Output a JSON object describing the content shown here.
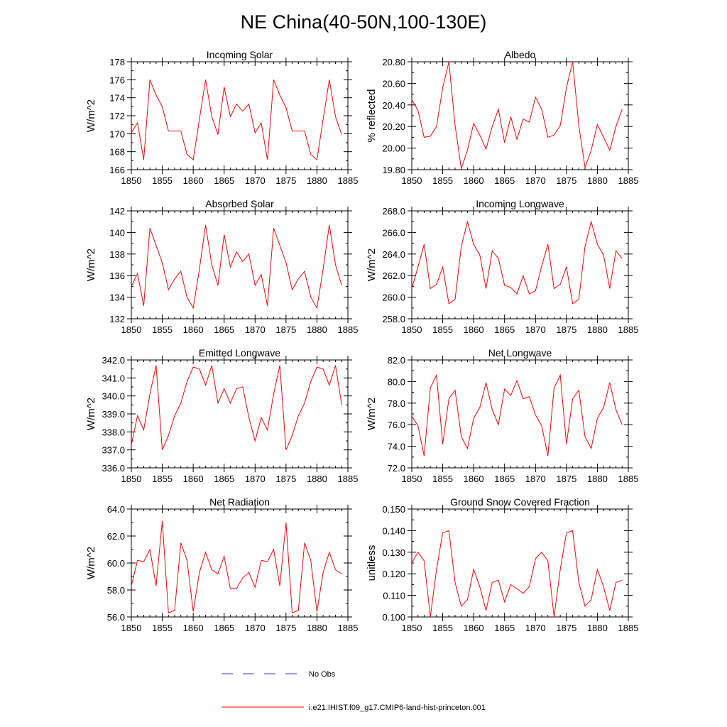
{
  "figure": {
    "title": "NE China(40-50N,100-130E)"
  },
  "legend": {
    "entries": [
      {
        "label": "No Obs",
        "color": "#3333cc",
        "dashed": true
      },
      {
        "label": "i.e21.IHIST.f09_g17.CMIP6-land-hist-princeton.001",
        "color": "#ff0000",
        "dashed": false
      }
    ]
  },
  "colors": {
    "line": "#ff0000",
    "axis": "#000000"
  },
  "chart_data": [
    {
      "type": "line",
      "title": "Incoming Solar",
      "ylabel": "W/m^2",
      "xlim": [
        1850,
        1885
      ],
      "ylim": [
        166,
        178
      ],
      "xticks": [
        1850,
        1855,
        1860,
        1865,
        1870,
        1875,
        1880,
        1885
      ],
      "yticks": [
        166,
        168,
        170,
        172,
        174,
        176,
        178
      ],
      "ytick_labels": [
        "166",
        "168",
        "170",
        "172",
        "174",
        "176",
        "178"
      ],
      "grid": false,
      "series": [
        {
          "x_start": 1850,
          "values": [
            170.1,
            171.2,
            167.1,
            176.0,
            174.3,
            173.0,
            170.3,
            170.3,
            170.3,
            167.7,
            167.1,
            171.6,
            176.0,
            171.9,
            169.9,
            175.2,
            171.9,
            173.3,
            172.5,
            173.3,
            170.1,
            171.2,
            167.1,
            176.0,
            174.3,
            172.9,
            170.3,
            170.3,
            170.3,
            167.7,
            167.1,
            171.6,
            176.0,
            171.9,
            169.9
          ]
        }
      ]
    },
    {
      "type": "line",
      "title": "Albedo",
      "ylabel": "% reflected",
      "xlim": [
        1850,
        1885
      ],
      "ylim": [
        19.8,
        20.8
      ],
      "xticks": [
        1850,
        1855,
        1860,
        1865,
        1870,
        1875,
        1880,
        1885
      ],
      "yticks": [
        19.8,
        20.0,
        20.2,
        20.4,
        20.6,
        20.8
      ],
      "ytick_labels": [
        "19.80",
        "20.00",
        "20.20",
        "20.40",
        "20.60",
        "20.80"
      ],
      "grid": false,
      "series": [
        {
          "x_start": 1850,
          "values": [
            20.45,
            20.35,
            20.1,
            20.11,
            20.2,
            20.56,
            20.8,
            20.21,
            19.81,
            19.98,
            20.23,
            20.12,
            19.99,
            20.2,
            20.36,
            20.05,
            20.29,
            20.08,
            20.27,
            20.24,
            20.47,
            20.36,
            20.1,
            20.12,
            20.21,
            20.56,
            20.8,
            20.21,
            19.82,
            19.98,
            20.22,
            20.1,
            19.98,
            20.2,
            20.36
          ]
        }
      ]
    },
    {
      "type": "line",
      "title": "Absorbed Solar",
      "ylabel": "W/m^2",
      "xlim": [
        1850,
        1885
      ],
      "ylim": [
        132,
        142
      ],
      "xticks": [
        1850,
        1855,
        1860,
        1865,
        1870,
        1875,
        1880,
        1885
      ],
      "yticks": [
        132,
        134,
        136,
        138,
        140,
        142
      ],
      "ytick_labels": [
        "132",
        "134",
        "136",
        "138",
        "140",
        "142"
      ],
      "grid": false,
      "series": [
        {
          "x_start": 1850,
          "values": [
            135.0,
            136.2,
            133.2,
            140.4,
            138.8,
            137.2,
            134.7,
            135.7,
            136.4,
            134.0,
            133.0,
            136.6,
            140.7,
            137.0,
            135.1,
            139.8,
            136.8,
            138.2,
            137.3,
            138.0,
            135.1,
            136.1,
            133.2,
            140.4,
            138.8,
            137.2,
            134.7,
            135.7,
            136.4,
            134.0,
            133.0,
            136.6,
            140.7,
            137.0,
            135.1
          ]
        }
      ]
    },
    {
      "type": "line",
      "title": "Incoming Longwave",
      "ylabel": "W/m^2",
      "xlim": [
        1850,
        1885
      ],
      "ylim": [
        258,
        268
      ],
      "xticks": [
        1850,
        1855,
        1860,
        1865,
        1870,
        1875,
        1880,
        1885
      ],
      "yticks": [
        258,
        260,
        262,
        264,
        266,
        268
      ],
      "ytick_labels": [
        "258.0",
        "260.0",
        "262.0",
        "264.0",
        "266.0",
        "268.0"
      ],
      "grid": false,
      "series": [
        {
          "x_start": 1850,
          "values": [
            260.8,
            262.8,
            264.9,
            260.8,
            261.2,
            262.8,
            259.4,
            259.8,
            264.7,
            267.0,
            264.9,
            263.9,
            260.8,
            264.3,
            263.6,
            261.1,
            260.9,
            260.3,
            262.0,
            260.3,
            260.6,
            262.9,
            264.9,
            260.8,
            261.2,
            262.8,
            259.4,
            259.8,
            264.7,
            267.0,
            264.9,
            263.9,
            260.8,
            264.3,
            263.6
          ]
        }
      ]
    },
    {
      "type": "line",
      "title": "Emitted Longwave",
      "ylabel": "W/m^2",
      "xlim": [
        1850,
        1885
      ],
      "ylim": [
        336,
        342
      ],
      "xticks": [
        1850,
        1855,
        1860,
        1865,
        1870,
        1875,
        1880,
        1885
      ],
      "yticks": [
        336,
        337,
        338,
        339,
        340,
        341,
        342
      ],
      "ytick_labels": [
        "336.0",
        "337.0",
        "338.0",
        "339.0",
        "340.0",
        "341.0",
        "342.0"
      ],
      "grid": false,
      "series": [
        {
          "x_start": 1850,
          "values": [
            337.3,
            338.9,
            338.1,
            340.1,
            341.7,
            337.0,
            337.8,
            338.9,
            339.6,
            340.8,
            341.6,
            341.5,
            340.6,
            341.7,
            339.6,
            340.4,
            339.6,
            340.4,
            340.5,
            338.8,
            337.5,
            338.8,
            338.1,
            340.1,
            341.7,
            337.0,
            337.8,
            338.9,
            339.6,
            340.8,
            341.6,
            341.5,
            340.6,
            341.7,
            339.5
          ]
        }
      ]
    },
    {
      "type": "line",
      "title": "Net Longwave",
      "ylabel": "W/m^2",
      "xlim": [
        1850,
        1885
      ],
      "ylim": [
        72,
        82
      ],
      "xticks": [
        1850,
        1855,
        1860,
        1865,
        1870,
        1875,
        1880,
        1885
      ],
      "yticks": [
        72,
        74,
        76,
        78,
        80,
        82
      ],
      "ytick_labels": [
        "72.0",
        "74.0",
        "76.0",
        "78.0",
        "80.0",
        "82.0"
      ],
      "grid": false,
      "series": [
        {
          "x_start": 1850,
          "values": [
            76.8,
            75.9,
            73.1,
            79.4,
            80.6,
            74.2,
            78.4,
            79.2,
            74.9,
            73.8,
            76.6,
            77.6,
            79.9,
            77.4,
            76.0,
            79.3,
            78.7,
            80.1,
            78.4,
            78.6,
            76.9,
            75.9,
            73.1,
            79.4,
            80.6,
            74.2,
            78.4,
            79.2,
            74.9,
            73.8,
            76.6,
            77.6,
            79.9,
            77.4,
            76.0
          ]
        }
      ]
    },
    {
      "type": "line",
      "title": "Net Radiation",
      "ylabel": "W/m^2",
      "xlim": [
        1850,
        1885
      ],
      "ylim": [
        56,
        64
      ],
      "xticks": [
        1850,
        1855,
        1860,
        1865,
        1870,
        1875,
        1880,
        1885
      ],
      "yticks": [
        56,
        58,
        60,
        62,
        64
      ],
      "ytick_labels": [
        "56.0",
        "58.0",
        "60.0",
        "62.0",
        "64.0"
      ],
      "grid": false,
      "series": [
        {
          "x_start": 1850,
          "values": [
            58.3,
            60.2,
            60.1,
            61.0,
            58.3,
            63.1,
            56.3,
            56.5,
            61.5,
            60.2,
            56.4,
            59.3,
            60.8,
            59.5,
            59.2,
            60.5,
            58.1,
            58.1,
            58.9,
            59.3,
            58.2,
            60.2,
            60.1,
            61.0,
            58.3,
            63.0,
            56.3,
            56.5,
            61.5,
            60.2,
            56.4,
            59.3,
            60.8,
            59.5,
            59.2
          ]
        }
      ]
    },
    {
      "type": "line",
      "title": "Ground Snow Covered Fraction",
      "ylabel": "unitless",
      "xlim": [
        1850,
        1885
      ],
      "ylim": [
        0.1,
        0.15
      ],
      "xticks": [
        1850,
        1855,
        1860,
        1865,
        1870,
        1875,
        1880,
        1885
      ],
      "yticks": [
        0.1,
        0.11,
        0.12,
        0.13,
        0.14,
        0.15
      ],
      "ytick_labels": [
        "0.100",
        "0.110",
        "0.120",
        "0.130",
        "0.140",
        "0.150"
      ],
      "grid": false,
      "series": [
        {
          "x_start": 1850,
          "values": [
            0.125,
            0.13,
            0.126,
            0.1,
            0.122,
            0.139,
            0.14,
            0.116,
            0.105,
            0.108,
            0.122,
            0.114,
            0.103,
            0.116,
            0.117,
            0.107,
            0.115,
            0.113,
            0.111,
            0.114,
            0.127,
            0.13,
            0.126,
            0.1,
            0.122,
            0.139,
            0.14,
            0.116,
            0.105,
            0.108,
            0.122,
            0.114,
            0.103,
            0.116,
            0.117
          ]
        }
      ]
    }
  ]
}
